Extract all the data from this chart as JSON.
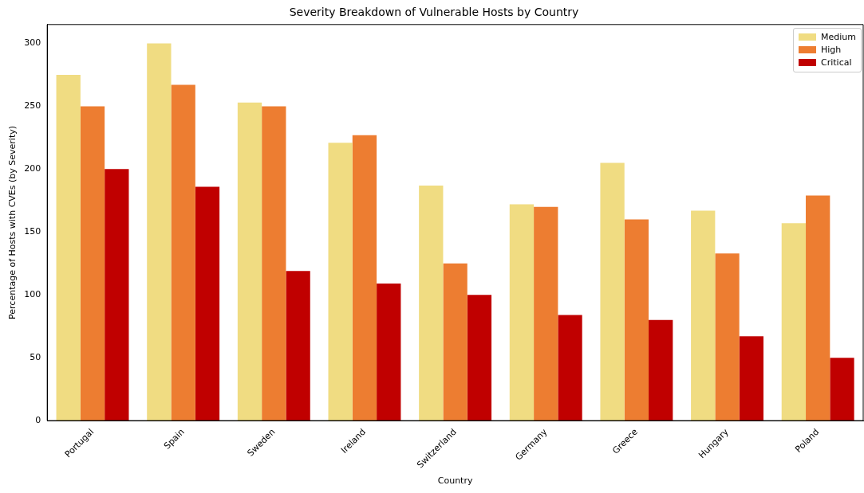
{
  "chart_data": {
    "type": "bar",
    "title": "Severity Breakdown of Vulnerable Hosts by Country",
    "xlabel": "Country",
    "ylabel": "Percentage of Hosts with CVEs (by Severity)",
    "categories": [
      "Portugal",
      "Spain",
      "Sweden",
      "Ireland",
      "Switzerland",
      "Germany",
      "Greece",
      "Hungary",
      "Poland"
    ],
    "series": [
      {
        "name": "Medium",
        "color": "#f0dc82",
        "values": [
          275,
          300,
          253,
          221,
          187,
          172,
          205,
          167,
          157
        ]
      },
      {
        "name": "High",
        "color": "#ed7d31",
        "values": [
          250,
          267,
          250,
          227,
          125,
          170,
          160,
          133,
          179
        ]
      },
      {
        "name": "Critical",
        "color": "#c00000",
        "values": [
          200,
          186,
          119,
          109,
          100,
          84,
          80,
          67,
          50
        ]
      }
    ],
    "ylim": [
      0,
      315
    ],
    "yticks": [
      0,
      50,
      100,
      150,
      200,
      250,
      300
    ],
    "grid": false,
    "legend": "top right"
  }
}
